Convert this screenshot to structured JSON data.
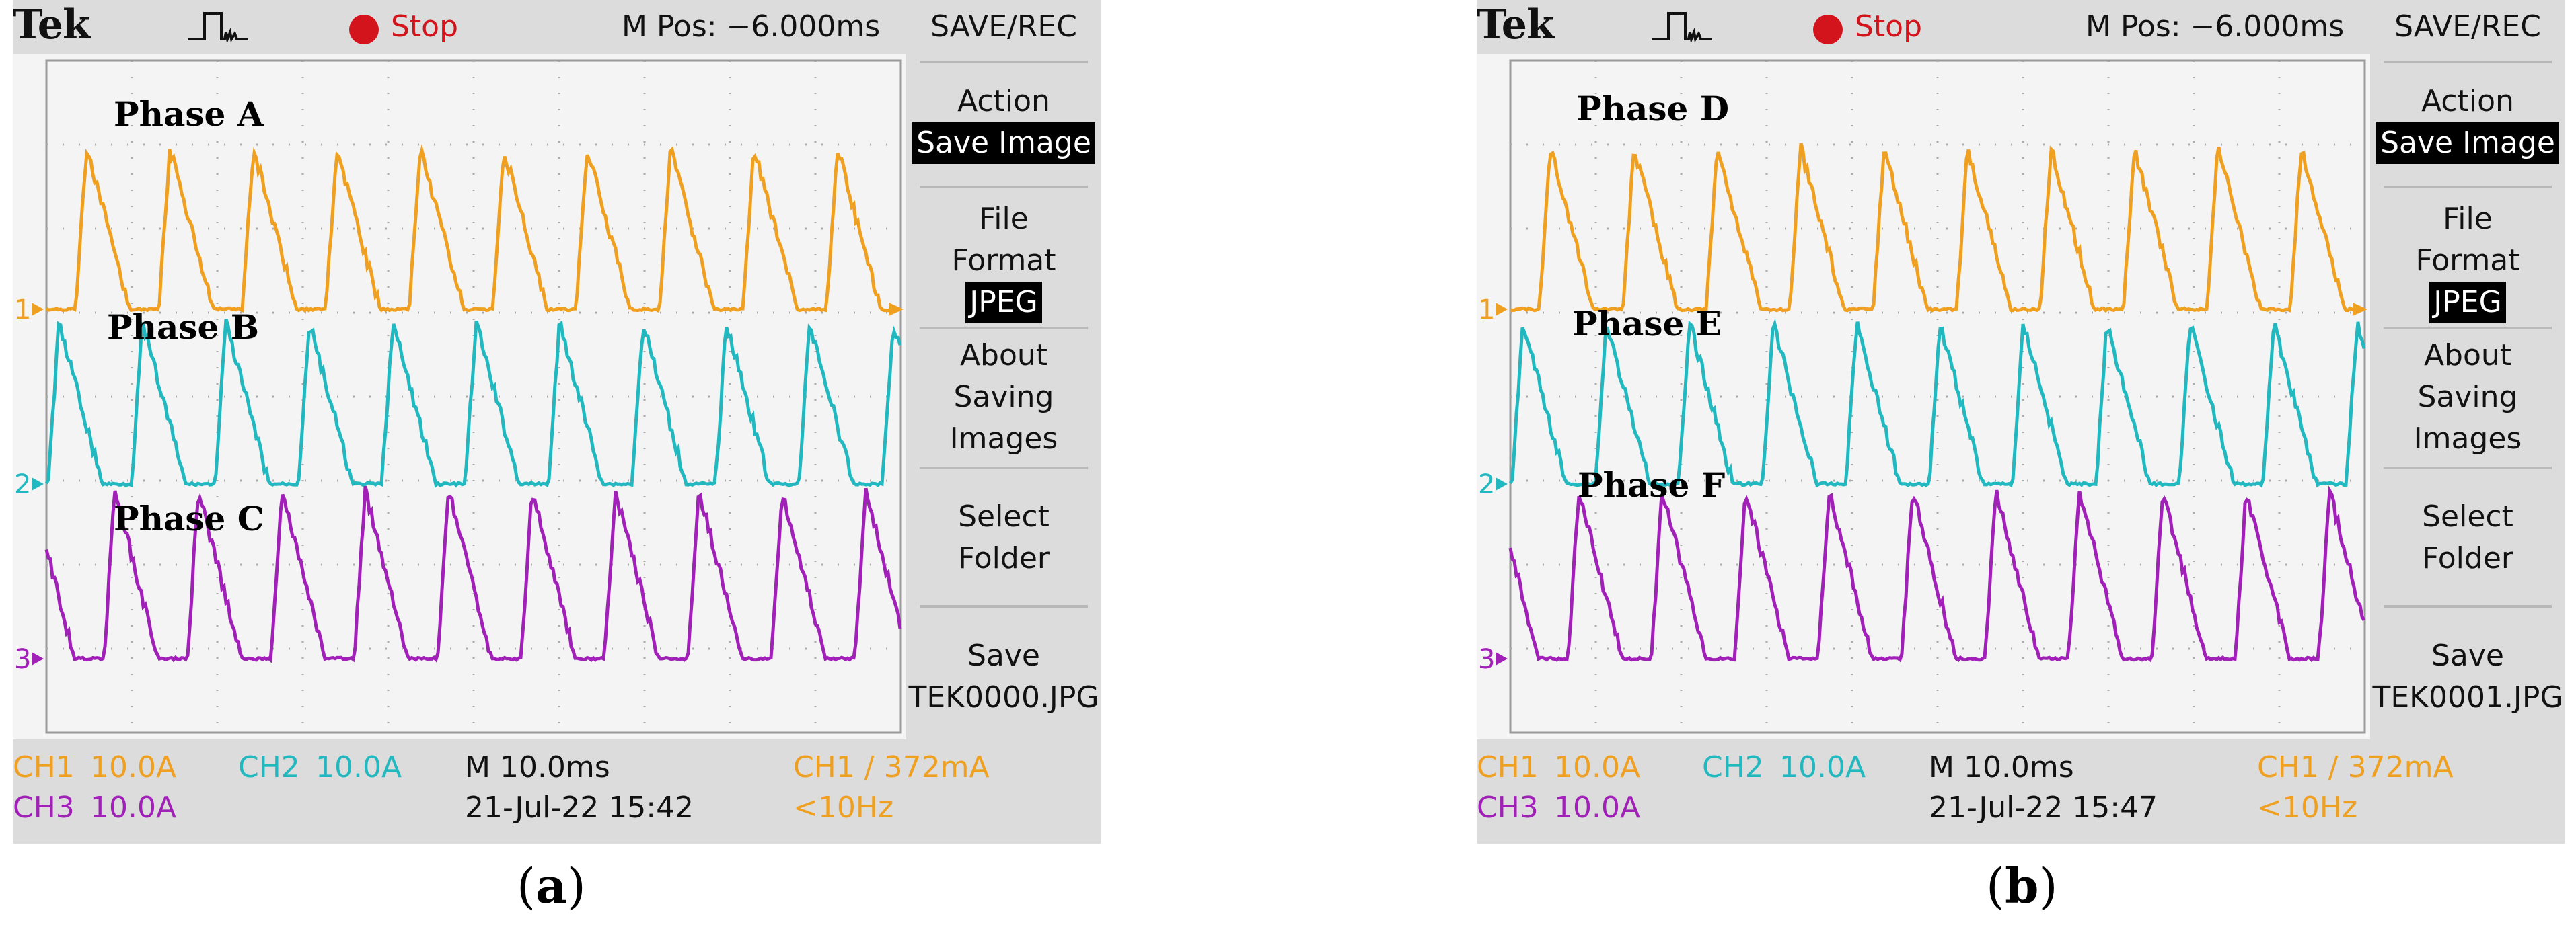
{
  "panels": [
    {
      "id": "a",
      "logo": "Tek",
      "status": "Stop",
      "mpos": "M Pos: −6.000ms",
      "menu": {
        "title": "SAVE/REC",
        "action_label": "Action",
        "action_value": "Save Image",
        "file_format_line1": "File",
        "file_format_line2": "Format",
        "file_format_value": "JPEG",
        "about_line1": "About",
        "about_line2": "Saving",
        "about_line3": "Images",
        "select_line1": "Select",
        "select_line2": "Folder",
        "save_line1": "Save",
        "save_line2": "TEK0000.JPG"
      },
      "phases": [
        "Phase A",
        "Phase B",
        "Phase C"
      ],
      "channel_markers": [
        "1",
        "2",
        "3"
      ],
      "readout": {
        "ch1": "CH1",
        "ch1_scale": "10.0A",
        "ch2": "CH2",
        "ch2_scale": "10.0A",
        "ch3": "CH3",
        "ch3_scale": "10.0A",
        "timebase": "M 10.0ms",
        "datetime": "21-Jul-22 15:42",
        "trigger": "CH1 ∕ 372mA",
        "freq": "<10Hz"
      },
      "caption_open": "(",
      "caption_letter": "a",
      "caption_close": ")"
    },
    {
      "id": "b",
      "logo": "Tek",
      "status": "Stop",
      "mpos": "M Pos: −6.000ms",
      "menu": {
        "title": "SAVE/REC",
        "action_label": "Action",
        "action_value": "Save Image",
        "file_format_line1": "File",
        "file_format_line2": "Format",
        "file_format_value": "JPEG",
        "about_line1": "About",
        "about_line2": "Saving",
        "about_line3": "Images",
        "select_line1": "Select",
        "select_line2": "Folder",
        "save_line1": "Save",
        "save_line2": "TEK0001.JPG"
      },
      "phases": [
        "Phase D",
        "Phase E",
        "Phase F"
      ],
      "channel_markers": [
        "1",
        "2",
        "3"
      ],
      "readout": {
        "ch1": "CH1",
        "ch1_scale": "10.0A",
        "ch2": "CH2",
        "ch2_scale": "10.0A",
        "ch3": "CH3",
        "ch3_scale": "10.0A",
        "timebase": "M 10.0ms",
        "datetime": "21-Jul-22 15:47",
        "trigger": "CH1 ∕ 372mA",
        "freq": "<10Hz"
      },
      "caption_open": "(",
      "caption_letter": "b",
      "caption_close": ")"
    }
  ],
  "colors": {
    "ch1": "#f0a020",
    "ch2": "#22b8c0",
    "ch3": "#a020b8",
    "stop": "#d4141c",
    "screen_bg": "#f4f4f4",
    "bezel": "#dcdcdc"
  },
  "icons": [
    "trigger-waveform-icon",
    "stop-indicator-icon",
    "trigger-position-arrow-icon",
    "channel-marker-icon"
  ]
}
